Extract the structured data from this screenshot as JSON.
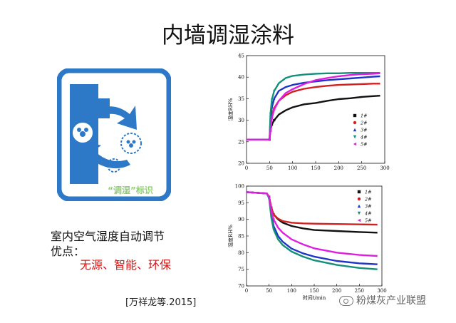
{
  "slide": {
    "title": "内墙调湿涂料",
    "logo_caption": "“调湿”标识",
    "text_line1": "室内空气湿度自动调节",
    "text_line2": "优点：",
    "highlight": "无源、智能、环保",
    "citation": "[万祥龙等.2015]",
    "watermark": "粉煤灰产业联盟",
    "colors": {
      "logo_blue": "#2d79c7",
      "highlight_red": "#d91616",
      "caption_green": "#8fd16f"
    }
  },
  "chart_data": [
    {
      "type": "line",
      "ylabel": "湿度RH%",
      "xlabel": "",
      "xlim": [
        0,
        300
      ],
      "ylim": [
        20,
        45
      ],
      "xticks": [
        0,
        50,
        100,
        150,
        200,
        250,
        300
      ],
      "yticks": [
        20,
        25,
        30,
        35,
        40,
        45
      ],
      "legend_position": "right",
      "series": [
        {
          "name": "1#",
          "color": "#111111",
          "marker": "square",
          "x": [
            0,
            50,
            52,
            55,
            60,
            70,
            85,
            100,
            125,
            150,
            175,
            200,
            225,
            250,
            275,
            290
          ],
          "values": [
            25.5,
            25.5,
            27.8,
            29,
            30,
            31.3,
            32.3,
            33,
            33.7,
            34,
            34.5,
            34.9,
            35.1,
            35.4,
            35.6,
            35.7
          ]
        },
        {
          "name": "2#",
          "color": "#d21f1f",
          "marker": "circle",
          "x": [
            0,
            50,
            52,
            55,
            60,
            70,
            85,
            100,
            125,
            150,
            175,
            200,
            225,
            250,
            275,
            290
          ],
          "values": [
            25.5,
            25.5,
            28.5,
            31,
            32.8,
            34.5,
            35.8,
            36.6,
            37.3,
            37.7,
            38,
            38.2,
            38.3,
            38.4,
            38.5,
            38.5
          ]
        },
        {
          "name": "3#",
          "color": "#1f34c8",
          "marker": "triangle-up",
          "x": [
            0,
            50,
            52,
            55,
            60,
            70,
            85,
            100,
            125,
            150,
            175,
            200,
            225,
            250,
            275,
            290
          ],
          "values": [
            25.5,
            25.5,
            30,
            33,
            35,
            36.8,
            37.7,
            38.2,
            38.7,
            39,
            39.3,
            39.5,
            39.7,
            39.9,
            40.1,
            40.2
          ]
        },
        {
          "name": "4#",
          "color": "#138f7a",
          "marker": "triangle-down",
          "x": [
            0,
            50,
            52,
            55,
            60,
            70,
            85,
            100,
            125,
            150,
            175,
            200,
            225,
            250,
            275,
            290
          ],
          "values": [
            25.5,
            25.5,
            31.5,
            34.8,
            36.8,
            38.6,
            39.8,
            40.3,
            40.6,
            40.8,
            40.9,
            40.9,
            41,
            41,
            41,
            41
          ]
        },
        {
          "name": "5#",
          "color": "#e01ee0",
          "marker": "triangle-left",
          "x": [
            0,
            50,
            52,
            55,
            60,
            70,
            85,
            100,
            125,
            150,
            175,
            200,
            225,
            250,
            275,
            290
          ],
          "values": [
            25.5,
            25.5,
            27.5,
            30.5,
            32.5,
            34.5,
            36.3,
            37.2,
            38.4,
            39.3,
            39.8,
            40.2,
            40.5,
            40.7,
            40.8,
            40.9
          ]
        }
      ]
    },
    {
      "type": "line",
      "ylabel": "湿度RH%",
      "xlabel": "时间t/min",
      "xlim": [
        0,
        300
      ],
      "ylim": [
        70,
        100
      ],
      "xticks": [
        0,
        50,
        100,
        150,
        200,
        250,
        300
      ],
      "yticks": [
        70,
        75,
        80,
        85,
        90,
        95,
        100
      ],
      "legend_position": "top-right",
      "series": [
        {
          "name": "1#",
          "color": "#111111",
          "marker": "square",
          "x": [
            0,
            45,
            50,
            55,
            60,
            70,
            80,
            100,
            125,
            150,
            200,
            250,
            290
          ],
          "values": [
            98.2,
            97.8,
            96.8,
            93.5,
            91.5,
            90,
            89,
            88,
            87.3,
            86.8,
            86.5,
            86.2,
            86
          ]
        },
        {
          "name": "2#",
          "color": "#d21f1f",
          "marker": "circle",
          "x": [
            0,
            45,
            50,
            55,
            60,
            70,
            80,
            100,
            125,
            150,
            200,
            250,
            290
          ],
          "values": [
            98.2,
            97.8,
            96.8,
            93.5,
            91.5,
            90.2,
            89.5,
            89,
            88.8,
            88.7,
            88.6,
            88.5,
            88.4
          ]
        },
        {
          "name": "3#",
          "color": "#1f34c8",
          "marker": "triangle-up",
          "x": [
            0,
            45,
            50,
            55,
            60,
            70,
            80,
            100,
            125,
            150,
            200,
            250,
            290
          ],
          "values": [
            98.2,
            97.8,
            96.5,
            91.5,
            88,
            85,
            83.3,
            81.2,
            79.8,
            78.8,
            77.5,
            76.8,
            76.5
          ]
        },
        {
          "name": "4#",
          "color": "#138f7a",
          "marker": "triangle-down",
          "x": [
            0,
            45,
            50,
            55,
            60,
            70,
            80,
            100,
            125,
            150,
            200,
            250,
            290
          ],
          "values": [
            98.2,
            97.8,
            96.3,
            90.5,
            87,
            84,
            82.3,
            80.3,
            78.8,
            77.7,
            76.3,
            75.4,
            75
          ]
        },
        {
          "name": "5#",
          "color": "#e01ee0",
          "marker": "triangle-left",
          "x": [
            0,
            45,
            50,
            55,
            60,
            70,
            80,
            100,
            125,
            150,
            200,
            250,
            290
          ],
          "values": [
            98.2,
            97.8,
            96.8,
            92.5,
            90,
            87.5,
            86,
            84,
            82.5,
            81.3,
            80,
            79.3,
            79
          ]
        }
      ]
    }
  ]
}
